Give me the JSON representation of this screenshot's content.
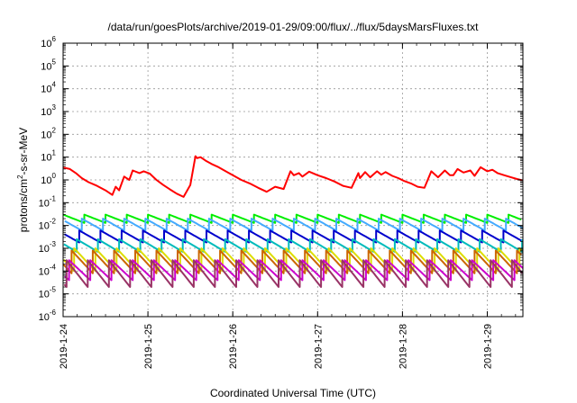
{
  "chart_data": {
    "type": "line",
    "title": "/data/run/goesPlots/archive/2019-01-29/09:00/flux/../flux/5daysMarsFluxes.txt",
    "xlabel": "Coordinated Universal Time (UTC)",
    "ylabel": "protons/cm²-s-sr-MeV",
    "ylabel_base": "protons/cm",
    "ylabel_sup": "2",
    "ylabel_rest": "-s-sr-MeV",
    "y_scale": "log",
    "ylim": [
      1e-06,
      1000000.0
    ],
    "xlim": [
      "2019-01-24",
      "2019-01-29 10:00"
    ],
    "x_tick_labels": [
      "2019-1-24",
      "2019-1-25",
      "2019-1-26",
      "2019-1-27",
      "2019-1-28",
      "2019-1-29"
    ],
    "y_tick_labels": [
      {
        "base": "10",
        "exp": "-6"
      },
      {
        "base": "10",
        "exp": "-5"
      },
      {
        "base": "10",
        "exp": "-4"
      },
      {
        "base": "10",
        "exp": "-3"
      },
      {
        "base": "10",
        "exp": "-2"
      },
      {
        "base": "10",
        "exp": "-1"
      },
      {
        "base": "10",
        "exp": "0"
      },
      {
        "base": "10",
        "exp": "1"
      },
      {
        "base": "10",
        "exp": "2"
      },
      {
        "base": "10",
        "exp": "3"
      },
      {
        "base": "10",
        "exp": "4"
      },
      {
        "base": "10",
        "exp": "5"
      },
      {
        "base": "10",
        "exp": "6"
      }
    ],
    "grid": true,
    "legend": "none",
    "series": [
      {
        "color": "#ff0000",
        "x_days": [
          0.0,
          0.08,
          0.15,
          0.22,
          0.3,
          0.4,
          0.5,
          0.58,
          0.62,
          0.66,
          0.72,
          0.78,
          0.82,
          0.9,
          0.95,
          1.02,
          1.1,
          1.18,
          1.26,
          1.34,
          1.42,
          1.5,
          1.56,
          1.58,
          1.62,
          1.68,
          1.75,
          1.82,
          1.9,
          2.0,
          2.1,
          2.2,
          2.3,
          2.4,
          2.5,
          2.6,
          2.68,
          2.72,
          2.78,
          2.82,
          2.9,
          3.0,
          3.1,
          3.2,
          3.3,
          3.4,
          3.48,
          3.5,
          3.56,
          3.62,
          3.7,
          3.75,
          3.8,
          3.88,
          3.95,
          4.02,
          4.1,
          4.18,
          4.26,
          4.34,
          4.42,
          4.5,
          4.56,
          4.6,
          4.65,
          4.72,
          4.8,
          4.85,
          4.92,
          5.0,
          5.06,
          5.12,
          5.2,
          5.28,
          5.35,
          5.42
        ],
        "y": [
          3.5,
          3.0,
          2.0,
          1.2,
          0.8,
          0.55,
          0.35,
          0.22,
          0.5,
          0.35,
          1.4,
          1.0,
          2.6,
          2.0,
          2.4,
          1.9,
          1.0,
          0.6,
          0.38,
          0.25,
          0.18,
          0.6,
          11.0,
          9.0,
          10.0,
          7.0,
          5.0,
          3.8,
          2.6,
          1.6,
          1.0,
          0.7,
          0.45,
          0.3,
          0.5,
          0.4,
          2.4,
          1.6,
          2.0,
          1.4,
          2.3,
          1.6,
          1.2,
          0.85,
          0.55,
          0.45,
          2.0,
          1.2,
          2.2,
          1.3,
          2.4,
          1.7,
          2.2,
          1.5,
          1.2,
          0.9,
          0.7,
          0.5,
          0.45,
          2.4,
          1.3,
          2.6,
          1.6,
          1.6,
          3.0,
          2.1,
          2.6,
          1.5,
          3.6,
          2.4,
          2.8,
          2.0,
          1.6,
          1.3,
          1.1,
          0.95
        ]
      },
      {
        "color": "#00ee00",
        "decay_days": 0.25,
        "cycle_phase": 0.0,
        "y_high": 0.03,
        "y_low": 0.013
      },
      {
        "color": "#44aaff",
        "decay_days": 0.25,
        "cycle_phase": 0.03,
        "y_high": 0.02,
        "y_low": 0.006
      },
      {
        "color": "#0000cc",
        "decay_days": 0.25,
        "cycle_phase": 0.06,
        "y_high": 0.006,
        "y_low": 0.0018
      },
      {
        "color": "#00bbbb",
        "decay_days": 0.25,
        "cycle_phase": 0.09,
        "y_high": 0.0025,
        "y_low": 0.0007
      },
      {
        "color": "#dddd00",
        "decay_days": 0.25,
        "cycle_phase": 0.12,
        "y_high": 0.001,
        "y_low": 0.0001
      },
      {
        "color": "#cc6600",
        "decay_days": 0.25,
        "cycle_phase": 0.15,
        "y_high": 0.0008,
        "y_low": 8e-05
      },
      {
        "color": "#cc00cc",
        "decay_days": 0.25,
        "cycle_phase": 0.18,
        "y_high": 0.0003,
        "y_low": 4e-05
      },
      {
        "color": "#993366",
        "decay_days": 0.25,
        "cycle_phase": 0.21,
        "y_high": 0.0003,
        "y_low": 2e-05
      }
    ]
  }
}
